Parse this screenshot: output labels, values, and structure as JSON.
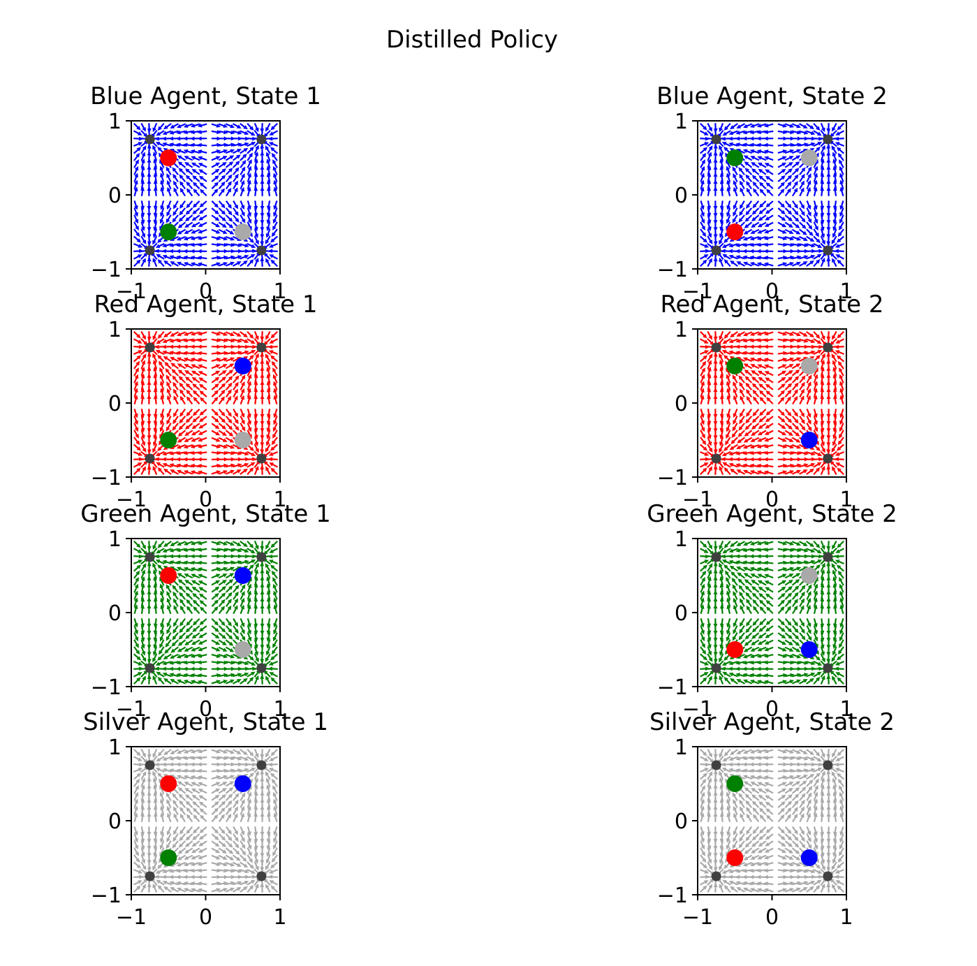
{
  "suptitle": "Distilled Policy",
  "colors": {
    "blue": "#0000ff",
    "red": "#ff0000",
    "green": "#008000",
    "silver": "#a9a9a9",
    "landmark": "#404040"
  },
  "chart_data": [
    {
      "type": "scatter",
      "title": "Blue Agent, State 1",
      "field_color": "blue",
      "xlim": [
        -1,
        1
      ],
      "ylim": [
        -1,
        1
      ],
      "xticks": [
        "−1",
        "0",
        "1"
      ],
      "yticks": [
        "−1",
        "0",
        "1"
      ],
      "landmarks": [
        [
          -0.75,
          0.75
        ],
        [
          0.75,
          0.75
        ],
        [
          -0.75,
          -0.75
        ],
        [
          0.75,
          -0.75
        ]
      ],
      "agents": [
        {
          "color": "red",
          "x": -0.5,
          "y": 0.5
        },
        {
          "color": "green",
          "x": -0.5,
          "y": -0.5
        },
        {
          "color": "silver",
          "x": 0.5,
          "y": -0.5
        }
      ]
    },
    {
      "type": "scatter",
      "title": "Blue Agent, State 2",
      "field_color": "blue",
      "xlim": [
        -1,
        1
      ],
      "ylim": [
        -1,
        1
      ],
      "xticks": [
        "−1",
        "0",
        "1"
      ],
      "yticks": [
        "−1",
        "0",
        "1"
      ],
      "landmarks": [
        [
          -0.75,
          0.75
        ],
        [
          0.75,
          0.75
        ],
        [
          -0.75,
          -0.75
        ],
        [
          0.75,
          -0.75
        ]
      ],
      "agents": [
        {
          "color": "green",
          "x": -0.5,
          "y": 0.5
        },
        {
          "color": "silver",
          "x": 0.5,
          "y": 0.5
        },
        {
          "color": "red",
          "x": -0.5,
          "y": -0.5
        }
      ]
    },
    {
      "type": "scatter",
      "title": "Red Agent, State 1",
      "field_color": "red",
      "xlim": [
        -1,
        1
      ],
      "ylim": [
        -1,
        1
      ],
      "xticks": [
        "−1",
        "0",
        "1"
      ],
      "yticks": [
        "−1",
        "0",
        "1"
      ],
      "landmarks": [
        [
          -0.75,
          0.75
        ],
        [
          0.75,
          0.75
        ],
        [
          -0.75,
          -0.75
        ],
        [
          0.75,
          -0.75
        ]
      ],
      "agents": [
        {
          "color": "blue",
          "x": 0.5,
          "y": 0.5
        },
        {
          "color": "green",
          "x": -0.5,
          "y": -0.5
        },
        {
          "color": "silver",
          "x": 0.5,
          "y": -0.5
        }
      ]
    },
    {
      "type": "scatter",
      "title": "Red Agent, State 2",
      "field_color": "red",
      "xlim": [
        -1,
        1
      ],
      "ylim": [
        -1,
        1
      ],
      "xticks": [
        "−1",
        "0",
        "1"
      ],
      "yticks": [
        "−1",
        "0",
        "1"
      ],
      "landmarks": [
        [
          -0.75,
          0.75
        ],
        [
          0.75,
          0.75
        ],
        [
          -0.75,
          -0.75
        ],
        [
          0.75,
          -0.75
        ]
      ],
      "agents": [
        {
          "color": "green",
          "x": -0.5,
          "y": 0.5
        },
        {
          "color": "silver",
          "x": 0.5,
          "y": 0.5
        },
        {
          "color": "blue",
          "x": 0.5,
          "y": -0.5
        }
      ]
    },
    {
      "type": "scatter",
      "title": "Green Agent, State 1",
      "field_color": "green",
      "xlim": [
        -1,
        1
      ],
      "ylim": [
        -1,
        1
      ],
      "xticks": [
        "−1",
        "0",
        "1"
      ],
      "yticks": [
        "−1",
        "0",
        "1"
      ],
      "landmarks": [
        [
          -0.75,
          0.75
        ],
        [
          0.75,
          0.75
        ],
        [
          -0.75,
          -0.75
        ],
        [
          0.75,
          -0.75
        ]
      ],
      "agents": [
        {
          "color": "red",
          "x": -0.5,
          "y": 0.5
        },
        {
          "color": "blue",
          "x": 0.5,
          "y": 0.5
        },
        {
          "color": "silver",
          "x": 0.5,
          "y": -0.5
        }
      ]
    },
    {
      "type": "scatter",
      "title": "Green Agent, State 2",
      "field_color": "green",
      "xlim": [
        -1,
        1
      ],
      "ylim": [
        -1,
        1
      ],
      "xticks": [
        "−1",
        "0",
        "1"
      ],
      "yticks": [
        "−1",
        "0",
        "1"
      ],
      "landmarks": [
        [
          -0.75,
          0.75
        ],
        [
          0.75,
          0.75
        ],
        [
          -0.75,
          -0.75
        ],
        [
          0.75,
          -0.75
        ]
      ],
      "agents": [
        {
          "color": "silver",
          "x": 0.5,
          "y": 0.5
        },
        {
          "color": "red",
          "x": -0.5,
          "y": -0.5
        },
        {
          "color": "blue",
          "x": 0.5,
          "y": -0.5
        }
      ]
    },
    {
      "type": "scatter",
      "title": "Silver Agent, State 1",
      "field_color": "silver",
      "xlim": [
        -1,
        1
      ],
      "ylim": [
        -1,
        1
      ],
      "xticks": [
        "−1",
        "0",
        "1"
      ],
      "yticks": [
        "−1",
        "0",
        "1"
      ],
      "landmarks": [
        [
          -0.75,
          0.75
        ],
        [
          0.75,
          0.75
        ],
        [
          -0.75,
          -0.75
        ],
        [
          0.75,
          -0.75
        ]
      ],
      "agents": [
        {
          "color": "red",
          "x": -0.5,
          "y": 0.5
        },
        {
          "color": "blue",
          "x": 0.5,
          "y": 0.5
        },
        {
          "color": "green",
          "x": -0.5,
          "y": -0.5
        }
      ]
    },
    {
      "type": "scatter",
      "title": "Silver Agent, State 2",
      "field_color": "silver",
      "xlim": [
        -1,
        1
      ],
      "ylim": [
        -1,
        1
      ],
      "xticks": [
        "−1",
        "0",
        "1"
      ],
      "yticks": [
        "−1",
        "0",
        "1"
      ],
      "landmarks": [
        [
          -0.75,
          0.75
        ],
        [
          0.75,
          0.75
        ],
        [
          -0.75,
          -0.75
        ],
        [
          0.75,
          -0.75
        ]
      ],
      "agents": [
        {
          "color": "green",
          "x": -0.5,
          "y": 0.5
        },
        {
          "color": "red",
          "x": -0.5,
          "y": -0.5
        },
        {
          "color": "blue",
          "x": 0.5,
          "y": -0.5
        }
      ]
    }
  ]
}
